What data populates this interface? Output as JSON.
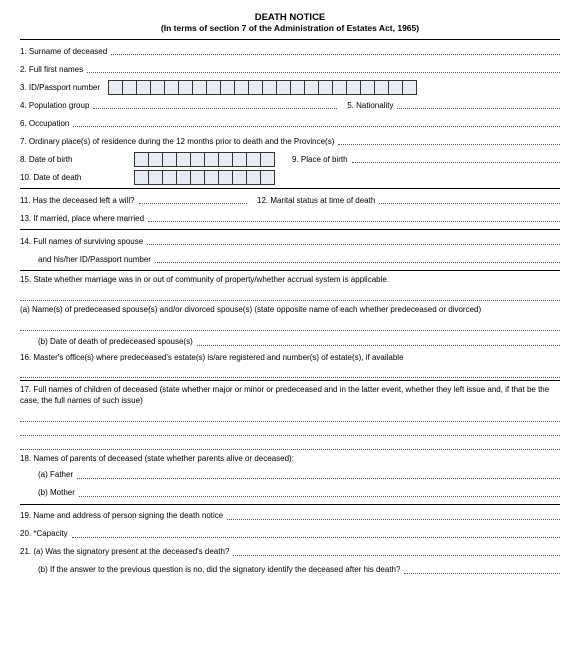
{
  "header": {
    "title": "DEATH NOTICE",
    "subtitle": "(In terms of section 7 of the Administration of Estates Act, 1965)"
  },
  "f1": "1. Surname of deceased",
  "f2": "2. Full first names",
  "f3": "3. ID/Passport number",
  "f4": "4. Population group",
  "f5": "5. Nationality",
  "f6": "6. Occupation",
  "f7": "7. Ordinary place(s) of residence during the 12 months prior to death and the Province(s)",
  "f8": "8. Date of birth",
  "f9": "9. Place of birth",
  "f10": "10. Date of death",
  "f11": "11. Has the deceased left a will?",
  "f12": "12. Marital status at time of death",
  "f13": "13. If married, place where married",
  "f14a": "14. Full names of surviving spouse",
  "f14b": "and his/her ID/Passport number",
  "f15": "15. State whether marriage was in or out of community of property/whether accrual system is applicable.",
  "f15a": "(a) Name(s) of predeceased spouse(s) and/or divorced spouse(s) (state opposite name of each whether predeceased or divorced)",
  "f15b": "(b) Date of death of predeceased spouse(s)",
  "f16": "16. Master's office(s) where predeceased's estate(s) is/are registered and number(s) of estate(s), if available",
  "f17": "17. Full names of children of deceased (state whether major or minor or predeceased and in the latter event, whether they left issue and, if that be the case, the full names of such issue)",
  "f18": "18. Names of parents of deceased (state whether parents alive or deceased):",
  "f18a": "(a) Father",
  "f18b": "(b) Mother",
  "f19": "19. Name and address of person signing the death notice",
  "f20": "20. *Capacity",
  "f21a": "21. (a) Was the signatory present at the deceased's death?",
  "f21b": "(b) If the answer to the previous question is no, did the signatory identify the deceased after his death?",
  "box_counts": {
    "id": 22,
    "dob": 10,
    "dod": 10
  },
  "colors": {
    "box_bg": "#e8edf5",
    "text": "#000000",
    "dots": "#555555"
  }
}
